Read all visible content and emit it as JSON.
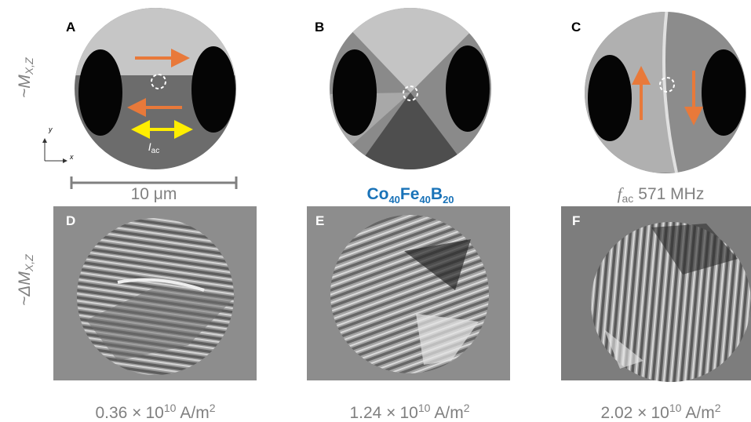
{
  "panels": [
    "A",
    "B",
    "C",
    "D",
    "E",
    "F"
  ],
  "row_labels": [
    {
      "prefix": "~M",
      "sub": "X,Z"
    },
    {
      "prefix": "~ΔM",
      "sub": "X,Z"
    }
  ],
  "axes": {
    "y": "y",
    "x": "x"
  },
  "current_label": {
    "symbol": "I",
    "sub": "ac"
  },
  "scale_bar": "10 μm",
  "material": [
    "Co",
    "40",
    "Fe",
    "40",
    "B",
    "20"
  ],
  "frequency": {
    "symbol": "f",
    "sub": "ac",
    "value": "571 MHz"
  },
  "current_densities": [
    {
      "mantissa": "0.36 ×",
      "base": "10",
      "exponent": "10",
      "unit": "A/m",
      "unit_exponent": "2"
    },
    {
      "mantissa": "1.24 ×",
      "base": "10",
      "exponent": "10",
      "unit": "A/m",
      "unit_exponent": "2"
    },
    {
      "mantissa": "2.02 ×",
      "base": "10",
      "exponent": "10",
      "unit": "A/m",
      "unit_exponent": "2"
    }
  ]
}
